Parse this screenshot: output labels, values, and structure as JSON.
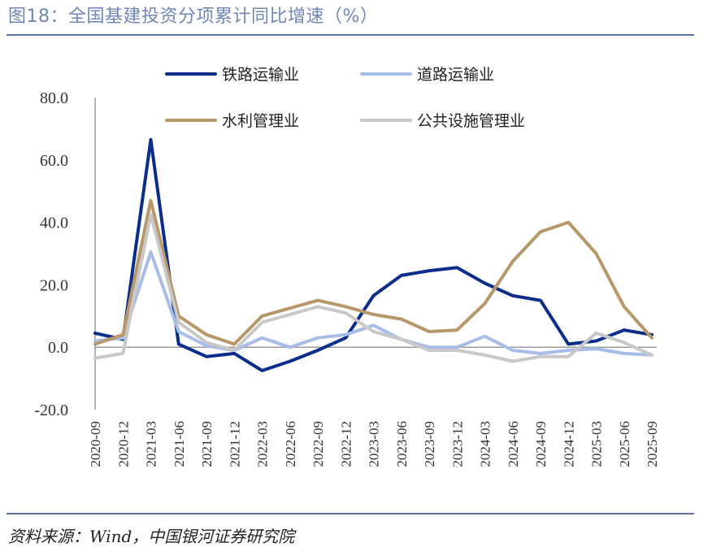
{
  "header": {
    "title": "图18：全国基建投资分项累计同比增速（%）"
  },
  "footer": {
    "source": "资料来源：Wind，中国银河证券研究院"
  },
  "chart_data": {
    "type": "line",
    "title": "图18：全国基建投资分项累计同比增速（%）",
    "ylim": [
      -20,
      80
    ],
    "yticks": [
      80,
      60,
      40,
      20,
      0,
      -20
    ],
    "ytick_labels": [
      "80.0",
      "60.0",
      "40.0",
      "20.0",
      "0.0",
      "-20.0"
    ],
    "grid": false,
    "legend_position": "top",
    "x_tick_labels": [
      "2020-09",
      "2020-12",
      "2021-03",
      "2021-06",
      "2021-09",
      "2021-12",
      "2022-03",
      "2022-06",
      "2022-09",
      "2022-12",
      "2023-03",
      "2023-06",
      "2023-09",
      "2023-12",
      "2024-03",
      "2024-06",
      "2024-09",
      "2024-12",
      "2025-03",
      "2025-06",
      "2025-09"
    ],
    "series": [
      {
        "name": "铁路运输业",
        "color": "#0b2e8a",
        "values": [
          4.5,
          2.5,
          66.5,
          1.0,
          -3.0,
          -2.0,
          -7.5,
          -4.5,
          -1.0,
          3.0,
          16.5,
          23.0,
          24.5,
          25.5,
          20.5,
          16.5,
          15.0,
          1.0,
          2.0,
          5.5,
          4.0
        ]
      },
      {
        "name": "道路运输业",
        "color": "#a7bce6",
        "values": [
          2.0,
          3.0,
          30.5,
          5.0,
          0.5,
          -1.0,
          3.0,
          0.0,
          3.0,
          4.0,
          7.0,
          2.5,
          0.0,
          0.0,
          3.5,
          -1.0,
          -2.0,
          -1.0,
          -0.5,
          -2.0,
          -2.5
        ]
      },
      {
        "name": "水利管理业",
        "color": "#b8976a",
        "values": [
          1.0,
          4.0,
          47.0,
          10.0,
          4.0,
          1.0,
          10.0,
          12.5,
          15.0,
          13.0,
          10.5,
          9.0,
          5.0,
          5.5,
          14.0,
          27.5,
          37.0,
          40.0,
          30.0,
          13.0,
          3.0
        ]
      },
      {
        "name": "公共设施管理业",
        "color": "#c8c8c8",
        "values": [
          -3.5,
          -2.0,
          42.5,
          8.0,
          1.5,
          -1.0,
          8.0,
          10.5,
          13.0,
          11.0,
          5.0,
          2.5,
          -1.0,
          -1.0,
          -2.5,
          -4.5,
          -3.0,
          -3.0,
          4.5,
          1.5,
          -2.5
        ]
      }
    ]
  }
}
